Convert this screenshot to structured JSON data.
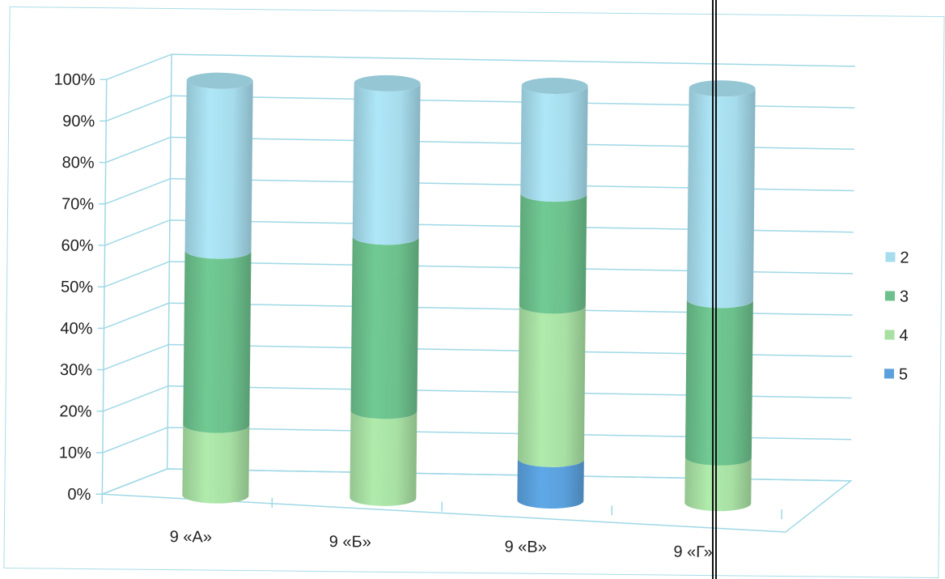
{
  "chart_data": {
    "type": "bar",
    "stacked": true,
    "normalized": true,
    "categories": [
      "9 «А»",
      "9 «Б»",
      "9 «В»",
      "9 «Г»"
    ],
    "series": [
      {
        "name": "5",
        "color": "#5aa0dc",
        "values": [
          0,
          0,
          10,
          0
        ]
      },
      {
        "name": "4",
        "color": "#a8e0a4",
        "values": [
          17,
          21,
          37,
          11
        ]
      },
      {
        "name": "3",
        "color": "#6cc08c",
        "values": [
          42,
          42,
          27,
          38
        ]
      },
      {
        "name": "2",
        "color": "#a6dcec",
        "values": [
          41,
          37,
          26,
          51
        ]
      }
    ],
    "y_ticks": [
      "0%",
      "10%",
      "20%",
      "30%",
      "40%",
      "50%",
      "60%",
      "70%",
      "80%",
      "90%",
      "100%"
    ],
    "ylim": [
      0,
      100
    ],
    "legend_order": [
      "2",
      "3",
      "4",
      "5"
    ],
    "legend_position": "right",
    "grid": true,
    "grid_color": "#9fd8e6"
  }
}
